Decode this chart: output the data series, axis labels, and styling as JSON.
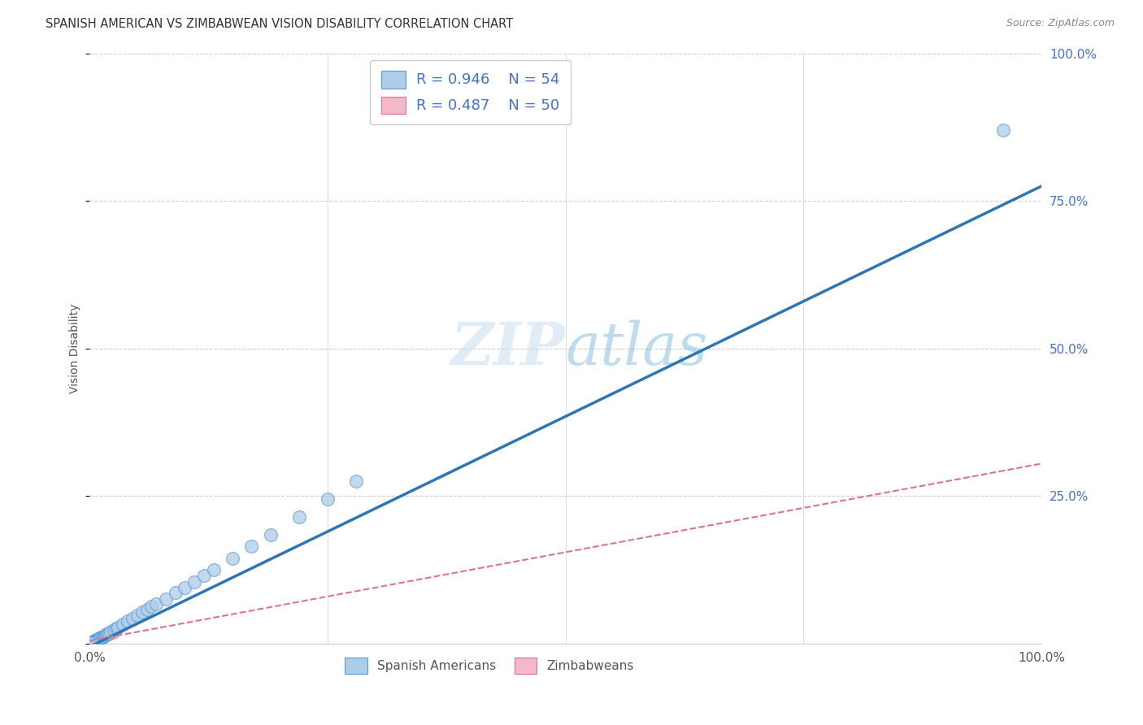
{
  "title": "SPANISH AMERICAN VS ZIMBABWEAN VISION DISABILITY CORRELATION CHART",
  "source": "Source: ZipAtlas.com",
  "ylabel": "Vision Disability",
  "ytick_vals": [
    0.0,
    0.25,
    0.5,
    0.75,
    1.0
  ],
  "ytick_labels": [
    "",
    "25.0%",
    "50.0%",
    "75.0%",
    "100.0%"
  ],
  "xtick_vals": [
    0.0,
    1.0
  ],
  "xtick_labels": [
    "0.0%",
    "100.0%"
  ],
  "legend_r1": "R = 0.946",
  "legend_n1": "N = 54",
  "legend_r2": "R = 0.487",
  "legend_n2": "N = 50",
  "color_blue_fill": "#aecde8",
  "color_blue_edge": "#5b9bd5",
  "color_blue_line": "#2e75b6",
  "color_pink_fill": "#f4b8c8",
  "color_pink_edge": "#e07090",
  "color_pink_line": "#e07090",
  "watermark_color": "#d6eaf8",
  "background_color": "#ffffff",
  "grid_color": "#d0d0d0",
  "label_color_right": "#4472c4",
  "label_color_bottom": "#555555",
  "blue_line_slope": 0.78,
  "blue_line_intercept": -0.005,
  "pink_line_slope": 0.3,
  "pink_line_intercept": 0.005,
  "spanish_x": [
    0.002,
    0.003,
    0.004,
    0.004,
    0.005,
    0.005,
    0.006,
    0.006,
    0.007,
    0.007,
    0.008,
    0.008,
    0.009,
    0.009,
    0.01,
    0.01,
    0.011,
    0.011,
    0.012,
    0.012,
    0.013,
    0.014,
    0.015,
    0.016,
    0.017,
    0.018,
    0.019,
    0.02,
    0.022,
    0.025,
    0.028,
    0.03,
    0.035,
    0.04,
    0.045,
    0.05,
    0.055,
    0.06,
    0.065,
    0.07,
    0.08,
    0.09,
    0.1,
    0.11,
    0.12,
    0.13,
    0.15,
    0.17,
    0.19,
    0.22,
    0.25,
    0.28,
    0.96,
    0.001
  ],
  "spanish_y": [
    0.002,
    0.003,
    0.003,
    0.004,
    0.004,
    0.005,
    0.004,
    0.005,
    0.005,
    0.006,
    0.006,
    0.007,
    0.007,
    0.008,
    0.008,
    0.009,
    0.009,
    0.01,
    0.01,
    0.011,
    0.011,
    0.012,
    0.013,
    0.014,
    0.015,
    0.016,
    0.017,
    0.018,
    0.02,
    0.023,
    0.026,
    0.028,
    0.033,
    0.038,
    0.043,
    0.048,
    0.053,
    0.058,
    0.063,
    0.068,
    0.076,
    0.086,
    0.095,
    0.105,
    0.115,
    0.125,
    0.145,
    0.165,
    0.185,
    0.215,
    0.245,
    0.275,
    0.87,
    0.001
  ],
  "zimb_x": [
    0.001,
    0.001,
    0.002,
    0.002,
    0.003,
    0.003,
    0.004,
    0.004,
    0.005,
    0.005,
    0.006,
    0.006,
    0.007,
    0.007,
    0.008,
    0.008,
    0.009,
    0.009,
    0.01,
    0.01,
    0.011,
    0.012,
    0.013,
    0.014,
    0.015,
    0.016,
    0.017,
    0.018,
    0.019,
    0.02,
    0.002,
    0.003,
    0.004,
    0.005,
    0.006,
    0.007,
    0.008,
    0.009,
    0.01,
    0.011,
    0.012,
    0.013,
    0.014,
    0.015,
    0.016,
    0.017,
    0.018,
    0.019,
    0.02,
    0.025
  ],
  "zimb_y": [
    0.001,
    0.002,
    0.002,
    0.003,
    0.003,
    0.004,
    0.004,
    0.005,
    0.005,
    0.006,
    0.006,
    0.007,
    0.007,
    0.008,
    0.008,
    0.009,
    0.009,
    0.01,
    0.01,
    0.011,
    0.01,
    0.011,
    0.012,
    0.012,
    0.013,
    0.013,
    0.014,
    0.014,
    0.015,
    0.015,
    0.003,
    0.004,
    0.005,
    0.006,
    0.007,
    0.008,
    0.009,
    0.01,
    0.01,
    0.011,
    0.011,
    0.012,
    0.012,
    0.013,
    0.013,
    0.014,
    0.014,
    0.015,
    0.015,
    0.018
  ]
}
